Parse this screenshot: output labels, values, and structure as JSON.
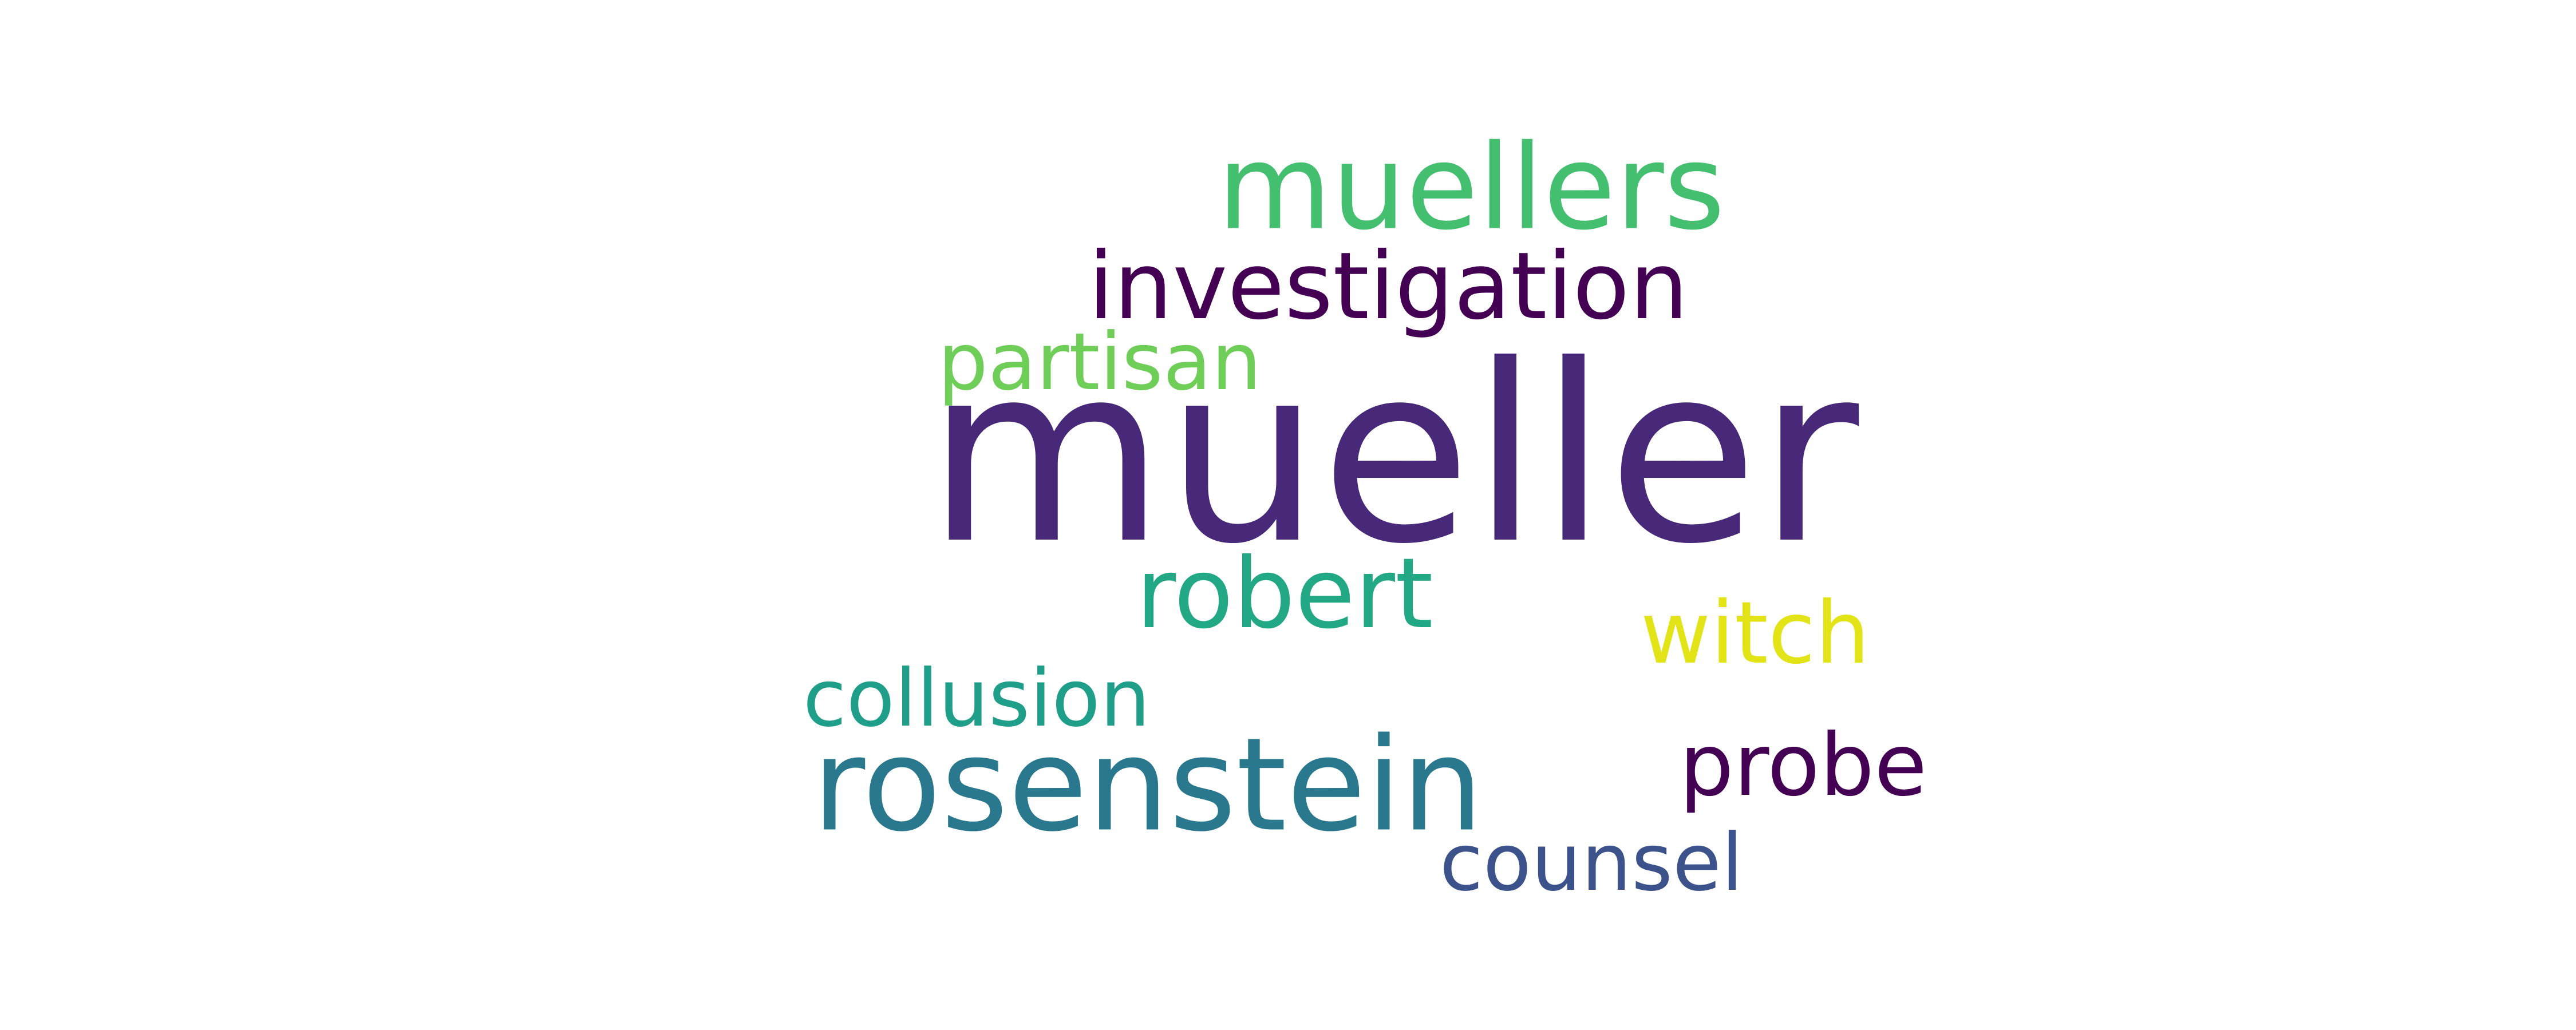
{
  "words": {
    "mueller": {
      "text": "mueller",
      "color": "#482878"
    },
    "muellers": {
      "text": "muellers",
      "color": "#44bf70"
    },
    "investigation": {
      "text": "investigation",
      "color": "#440154"
    },
    "partisan": {
      "text": "partisan",
      "color": "#6ece58"
    },
    "robert": {
      "text": "robert",
      "color": "#22a884"
    },
    "witch": {
      "text": "witch",
      "color": "#e3e418"
    },
    "collusion": {
      "text": "collusion",
      "color": "#1f9e89"
    },
    "rosenstein": {
      "text": "rosenstein",
      "color": "#2a788e"
    },
    "probe": {
      "text": "probe",
      "color": "#440154"
    },
    "counsel": {
      "text": "counsel",
      "color": "#3b528b"
    }
  }
}
